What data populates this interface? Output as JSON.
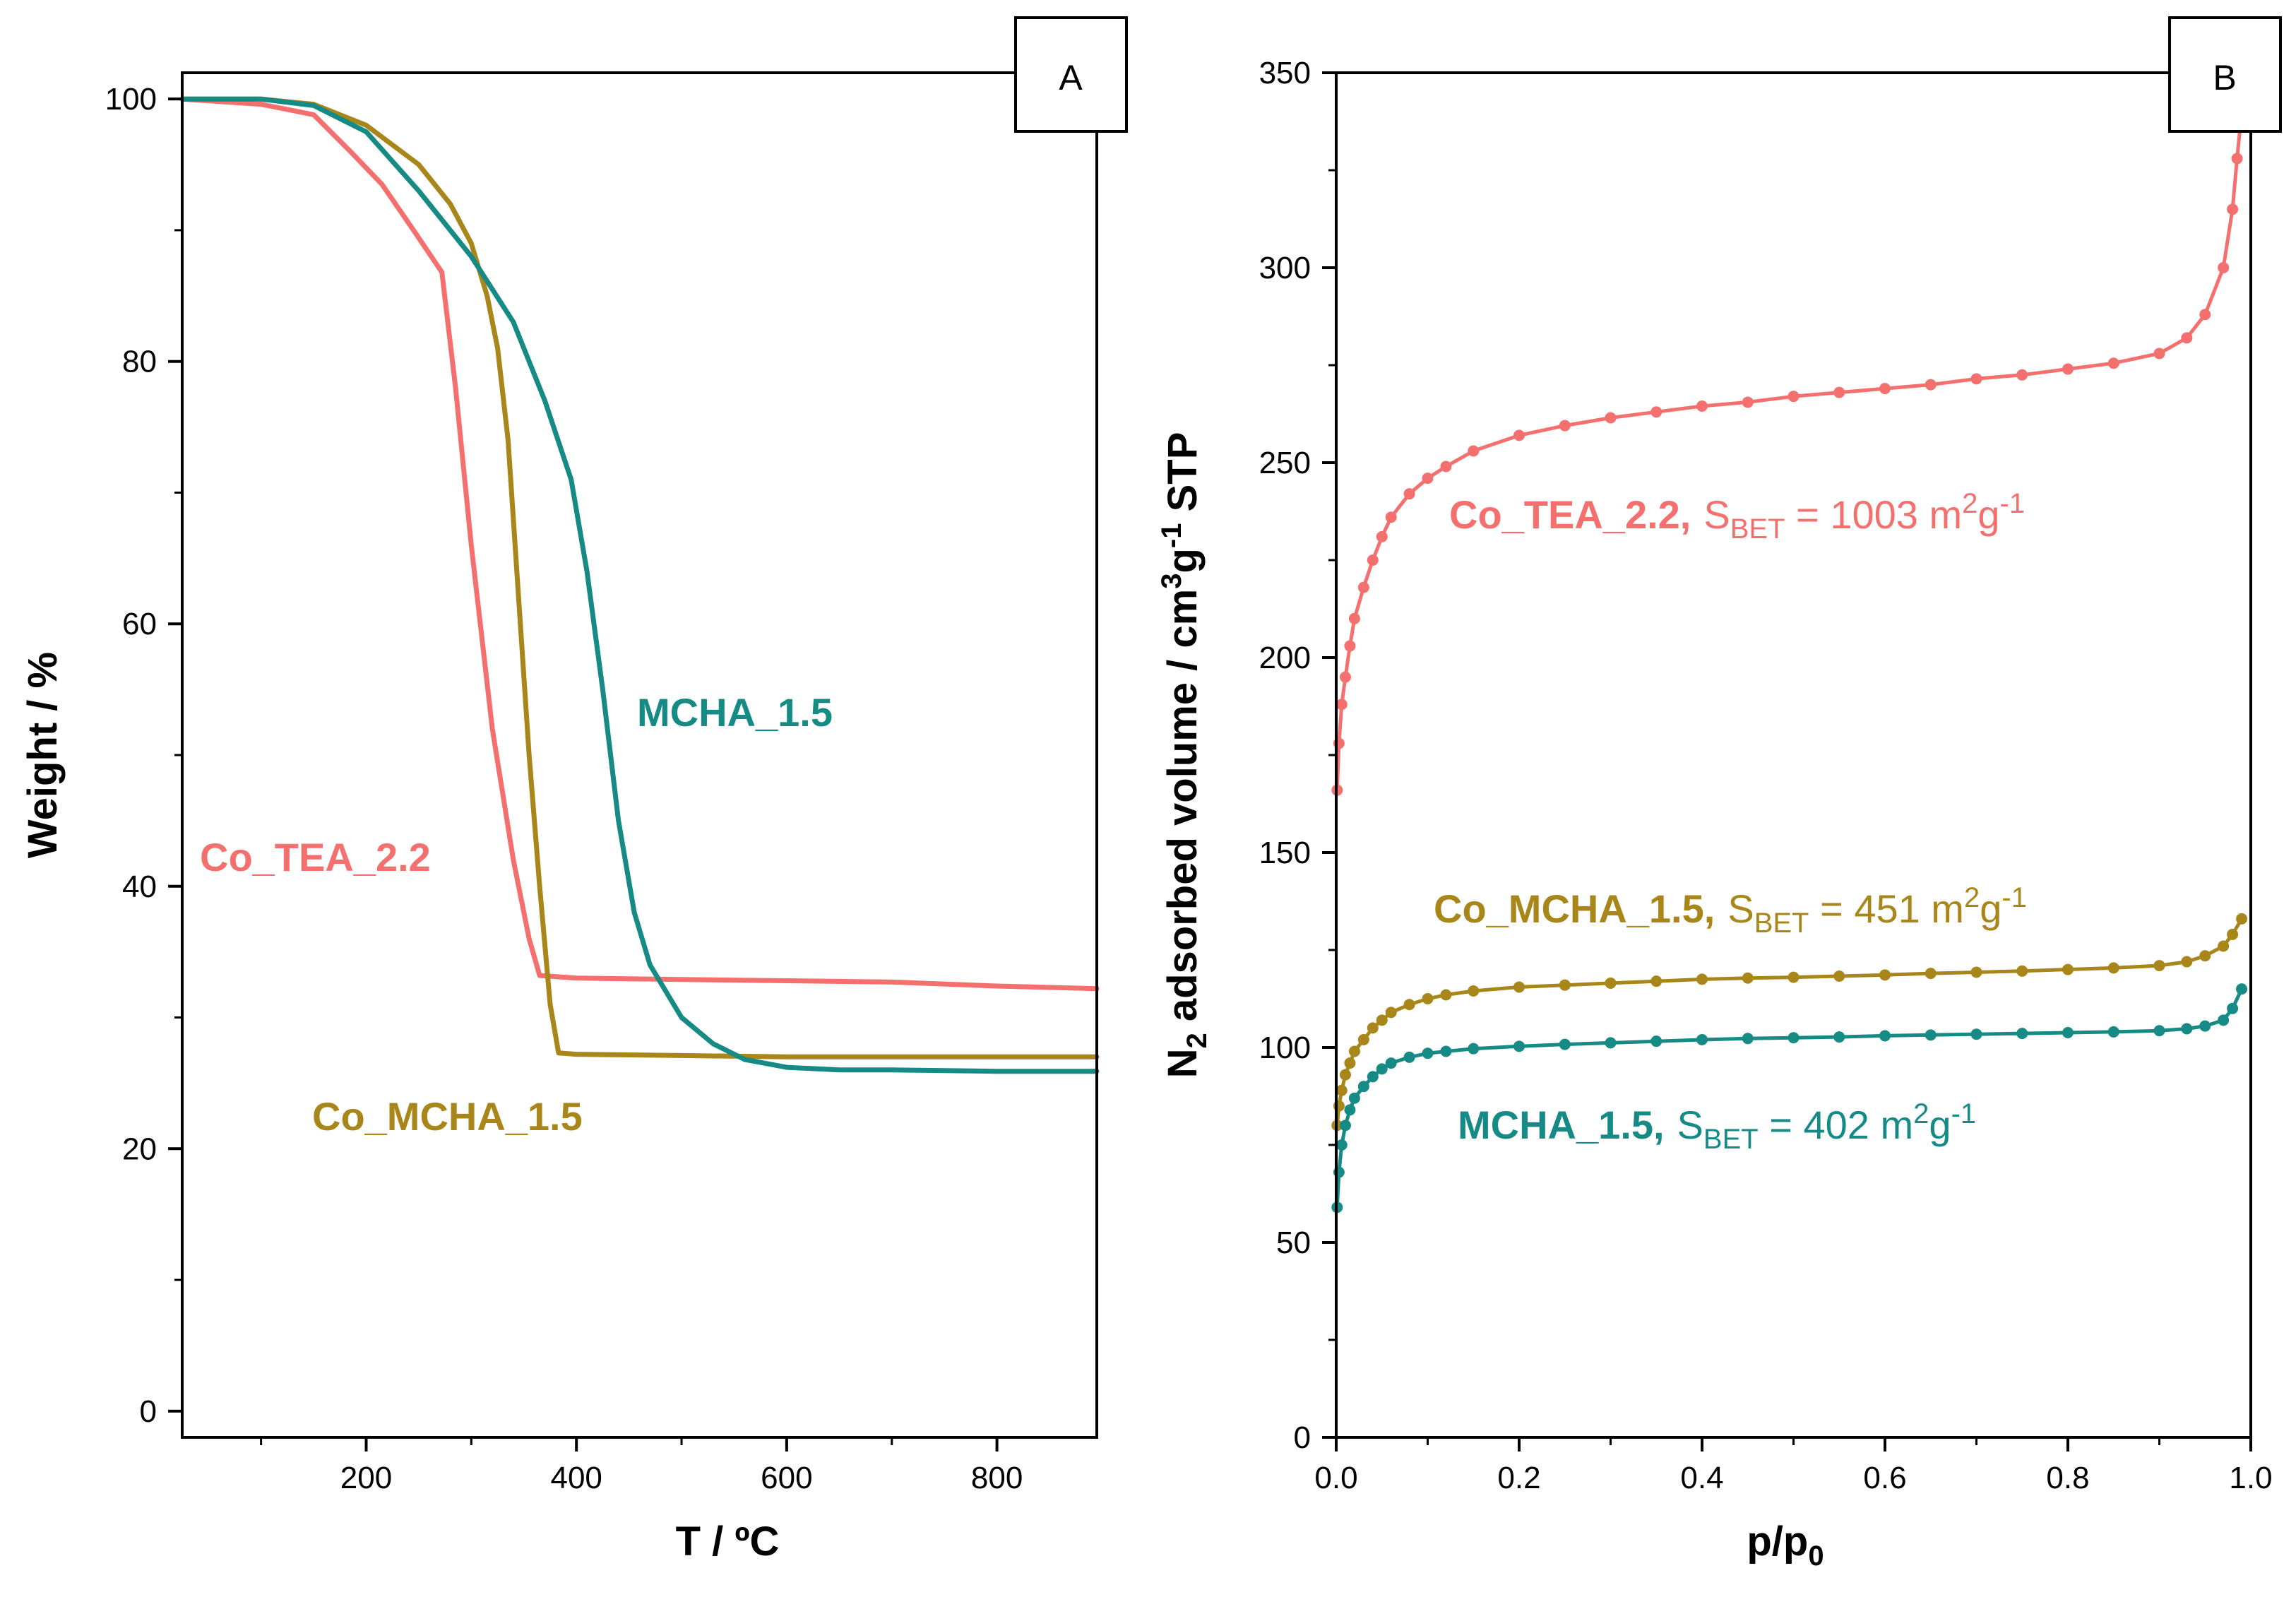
{
  "chart_data": [
    {
      "panel": "A",
      "type": "line",
      "xlabel": "T / ºC",
      "ylabel": "Weight / %",
      "xlim": [
        25,
        895
      ],
      "ylim": [
        -2,
        102
      ],
      "xticks": [
        200,
        400,
        600,
        800
      ],
      "yticks": [
        0,
        20,
        40,
        60,
        80,
        100
      ],
      "xtick_labels": [
        "200",
        "400",
        "600",
        "800"
      ],
      "ytick_labels": [
        "0",
        "20",
        "40",
        "60",
        "80",
        "100"
      ],
      "series": [
        {
          "name": "Co_TEA_2.2",
          "label": "Co_TEA_2.2",
          "color": "#f4706e",
          "x": [
            25,
            100,
            150,
            185,
            215,
            245,
            272,
            285,
            300,
            320,
            340,
            355,
            365,
            400,
            500,
            600,
            700,
            800,
            895
          ],
          "y": [
            100,
            99.6,
            98.8,
            96,
            93.5,
            90,
            86.8,
            78,
            66,
            52,
            42,
            36,
            33.2,
            33.0,
            32.9,
            32.8,
            32.7,
            32.4,
            32.2
          ]
        },
        {
          "name": "Co_MCHA_1.5",
          "label": "Co_MCHA_1.5",
          "color": "#a8861a",
          "x": [
            25,
            100,
            150,
            200,
            250,
            280,
            300,
            315,
            325,
            335,
            345,
            355,
            365,
            375,
            383,
            400,
            500,
            600,
            700,
            800,
            895
          ],
          "y": [
            100,
            100,
            99.6,
            98,
            95,
            92,
            89,
            85,
            81,
            74,
            62,
            50,
            40,
            31,
            27.3,
            27.2,
            27.1,
            27.0,
            27.0,
            27.0,
            27.0
          ]
        },
        {
          "name": "MCHA_1.5",
          "label": "MCHA_1.5",
          "color": "#168a84",
          "x": [
            25,
            100,
            150,
            200,
            250,
            300,
            340,
            370,
            395,
            410,
            425,
            440,
            455,
            470,
            500,
            530,
            560,
            600,
            650,
            700,
            800,
            895
          ],
          "y": [
            100,
            100,
            99.5,
            97.5,
            93,
            88,
            83,
            77,
            71,
            64,
            55,
            45,
            38,
            34,
            30,
            28,
            26.8,
            26.2,
            26.0,
            26.0,
            25.9,
            25.9
          ]
        }
      ]
    },
    {
      "panel": "B",
      "type": "scatter",
      "xlabel": "p/p0",
      "ylabel": "N2 adsorbed volume / cm3g-1 STP",
      "xlim": [
        0,
        1.0
      ],
      "ylim": [
        0,
        350
      ],
      "xticks": [
        0.0,
        0.2,
        0.4,
        0.6,
        0.8,
        1.0
      ],
      "yticks": [
        0,
        50,
        100,
        150,
        200,
        250,
        300,
        350
      ],
      "xtick_labels": [
        "0.0",
        "0.2",
        "0.4",
        "0.6",
        "0.8",
        "1.0"
      ],
      "ytick_labels": [
        "0",
        "50",
        "100",
        "150",
        "200",
        "250",
        "300",
        "350"
      ],
      "series": [
        {
          "name": "Co_TEA_2.2",
          "label": "Co_TEA_2.2,",
          "sbet": "1003",
          "color": "#f4706e",
          "x": [
            0.001,
            0.003,
            0.006,
            0.01,
            0.015,
            0.02,
            0.03,
            0.04,
            0.05,
            0.06,
            0.08,
            0.1,
            0.12,
            0.15,
            0.2,
            0.25,
            0.3,
            0.35,
            0.4,
            0.45,
            0.5,
            0.55,
            0.6,
            0.65,
            0.7,
            0.75,
            0.8,
            0.85,
            0.9,
            0.93,
            0.95,
            0.97,
            0.98,
            0.985,
            0.99
          ],
          "y": [
            166,
            178,
            188,
            195,
            203,
            210,
            218,
            225,
            231,
            236,
            242,
            246,
            249,
            253,
            257,
            259.5,
            261.5,
            263,
            264.5,
            265.5,
            267,
            268,
            269,
            270,
            271.5,
            272.5,
            274,
            275.5,
            278,
            282,
            288,
            300,
            315,
            328,
            340
          ]
        },
        {
          "name": "Co_MCHA_1.5",
          "label": "Co_MCHA_1.5,",
          "sbet": "451",
          "color": "#a8861a",
          "x": [
            0.001,
            0.003,
            0.006,
            0.01,
            0.015,
            0.02,
            0.03,
            0.04,
            0.05,
            0.06,
            0.08,
            0.1,
            0.12,
            0.15,
            0.2,
            0.25,
            0.3,
            0.35,
            0.4,
            0.45,
            0.5,
            0.55,
            0.6,
            0.65,
            0.7,
            0.75,
            0.8,
            0.85,
            0.9,
            0.93,
            0.95,
            0.97,
            0.98,
            0.99
          ],
          "y": [
            80,
            85,
            89,
            93,
            96,
            99,
            102,
            105,
            107,
            109,
            111,
            112.5,
            113.5,
            114.5,
            115.5,
            116,
            116.5,
            117,
            117.5,
            117.8,
            118,
            118.3,
            118.6,
            119,
            119.3,
            119.6,
            120,
            120.4,
            121,
            122,
            123.5,
            126,
            129,
            133
          ]
        },
        {
          "name": "MCHA_1.5",
          "label": "MCHA_1.5,",
          "sbet": "402",
          "color": "#168a84",
          "x": [
            0.001,
            0.003,
            0.006,
            0.01,
            0.015,
            0.02,
            0.03,
            0.04,
            0.05,
            0.06,
            0.08,
            0.1,
            0.12,
            0.15,
            0.2,
            0.25,
            0.3,
            0.35,
            0.4,
            0.45,
            0.5,
            0.55,
            0.6,
            0.65,
            0.7,
            0.75,
            0.8,
            0.85,
            0.9,
            0.93,
            0.95,
            0.97,
            0.98,
            0.99
          ],
          "y": [
            59,
            68,
            75,
            80,
            84,
            87,
            90,
            92.5,
            94.5,
            96,
            97.5,
            98.5,
            99,
            99.7,
            100.3,
            100.8,
            101.2,
            101.6,
            102,
            102.3,
            102.5,
            102.7,
            103,
            103.2,
            103.4,
            103.6,
            103.8,
            104,
            104.3,
            104.8,
            105.5,
            107,
            110,
            115
          ]
        }
      ]
    }
  ],
  "panels": {
    "a": {
      "label": "A",
      "xlabel": "T / ºC",
      "ylabel": "Weight / %",
      "annotations": {
        "co_tea": "Co_TEA_2.2",
        "mcha": "MCHA_1.5",
        "co_mcha": "Co_MCHA_1.5"
      }
    },
    "b": {
      "label": "B",
      "xlabel_main": "p/p",
      "xlabel_sub": "0",
      "ylabel": {
        "n": "N",
        "n_sub": "2",
        "mid": " adsorbed volume / cm",
        "cm_sup": "3",
        "g": "g",
        "g_sup": "-1",
        "end": " STP"
      },
      "sbet": {
        "prefix": "S",
        "sub": "BET",
        "equals": " = ",
        "unit_m": " m",
        "unit_m_sup": "2",
        "unit_g": "g",
        "unit_g_sup": "-1"
      }
    }
  }
}
